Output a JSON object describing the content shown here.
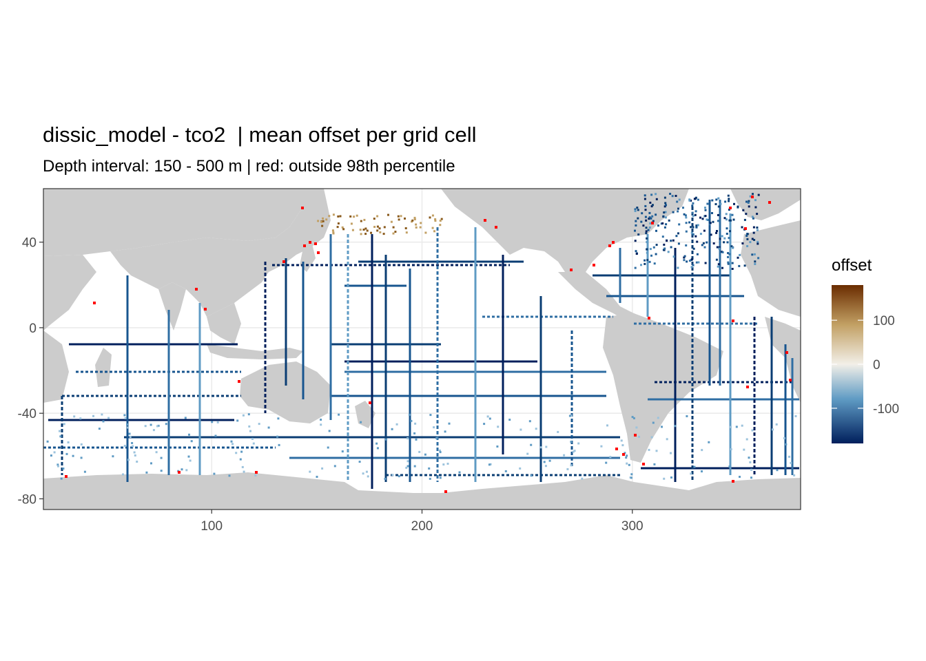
{
  "chart_data": {
    "type": "heatmap",
    "title": "dissic_model - tco2  | mean offset per grid cell",
    "subtitle": "Depth interval: 150 - 500 m | red: outside 98th percentile",
    "xlabel": "",
    "ylabel": "",
    "xlim": [
      20,
      380
    ],
    "ylim": [
      -85,
      65
    ],
    "x_ticks": [
      100,
      200,
      300
    ],
    "y_ticks": [
      40,
      0,
      -40,
      -80
    ],
    "grid": true,
    "legend": {
      "title": "offset",
      "placement": "right",
      "range": [
        -180,
        180
      ],
      "ticks": [
        100,
        0,
        -100
      ],
      "colors": {
        "high": "#6a2c00",
        "upper_mid": "#c2a064",
        "zero": "#f2efe8",
        "lower_mid": "#5f9bc4",
        "low": "#001f5c"
      }
    },
    "colors": {
      "land": "#cccccc",
      "ocean": "#ffffff",
      "outlier": "#ff0000",
      "panel_border": "#333333"
    }
  }
}
